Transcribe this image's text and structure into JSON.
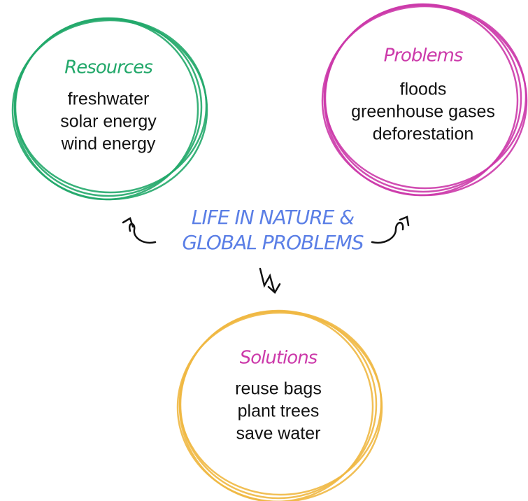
{
  "center": {
    "lines": [
      "LIFE IN NATURE &",
      "GLOBAL PROBLEMS"
    ]
  },
  "nodes": [
    {
      "title": "Resources",
      "items": [
        "freshwater",
        "solar energy",
        "wind energy"
      ]
    },
    {
      "title": "Problems",
      "items": [
        "floods",
        "greenhouse gases",
        "deforestation"
      ]
    },
    {
      "title": "Solutions",
      "items": [
        "reuse bags",
        "plant trees",
        "save water"
      ]
    }
  ]
}
